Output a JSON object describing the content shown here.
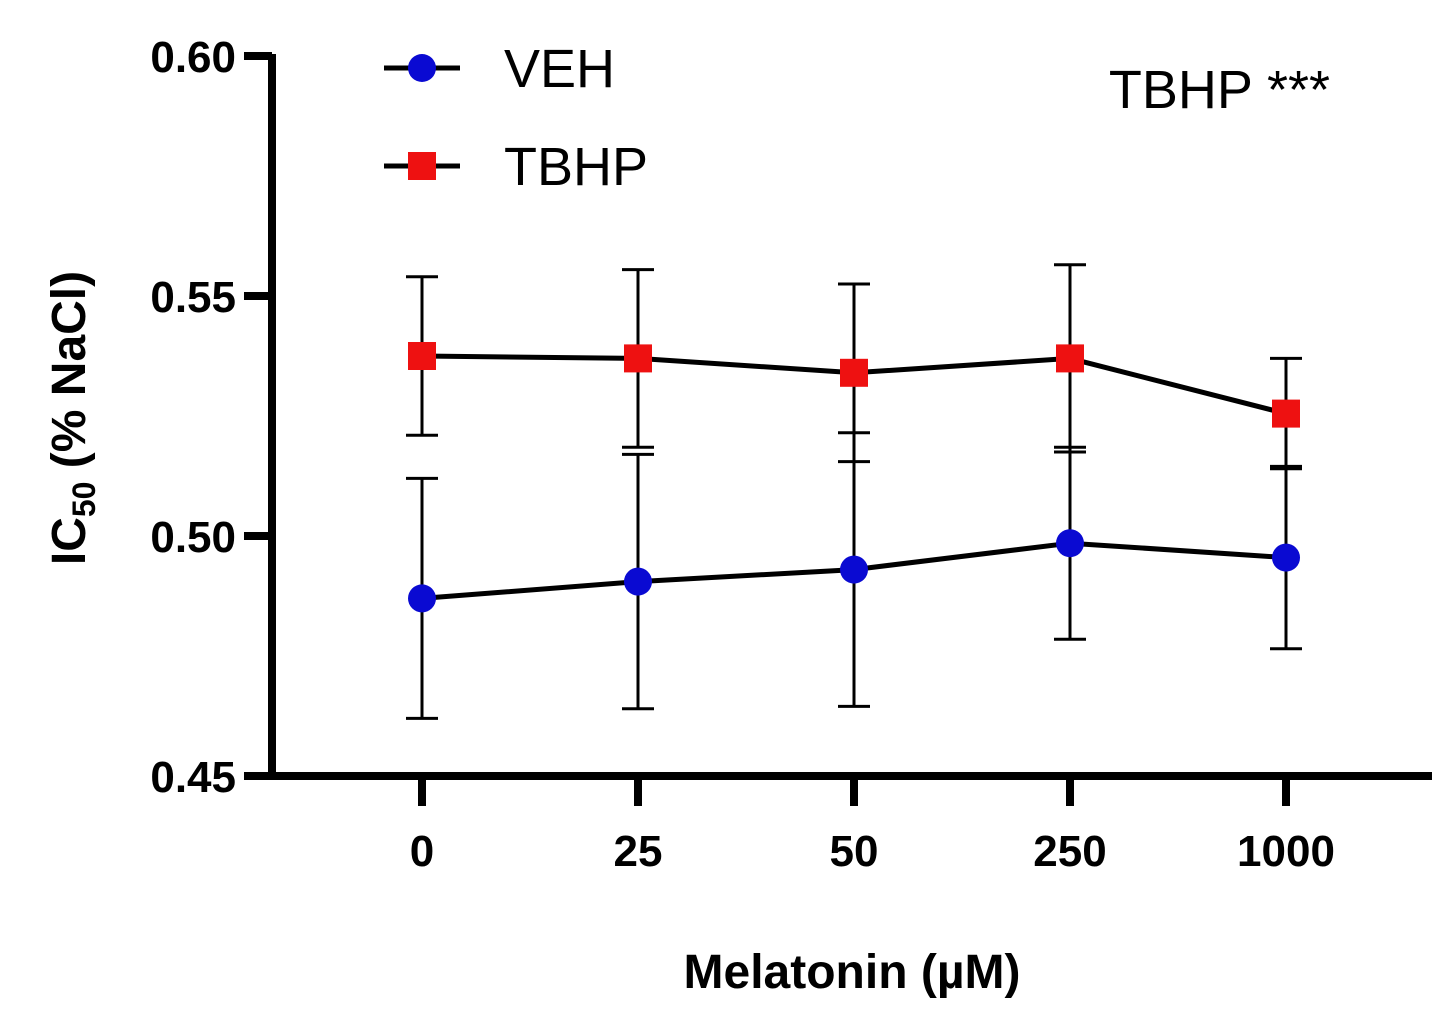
{
  "chart_data": {
    "type": "line",
    "title": "",
    "xlabel": "Melatonin (µM)",
    "ylabel": {
      "main": "IC",
      "sub": "50",
      "rest": " (% NaCl)"
    },
    "categories": [
      "0",
      "25",
      "50",
      "250",
      "1000"
    ],
    "ylim": [
      0.45,
      0.6
    ],
    "yticks": [
      0.45,
      0.5,
      0.55,
      0.6
    ],
    "ytick_labels": [
      "0.45",
      "0.50",
      "0.55",
      "0.60"
    ],
    "grid": false,
    "legend_position": "top-left",
    "series": [
      {
        "name": "VEH",
        "marker": "circle",
        "color": "#0a0ad2",
        "values": [
          0.487,
          0.4905,
          0.493,
          0.4985,
          0.4955
        ],
        "errors": [
          0.025,
          0.0265,
          0.0285,
          0.02,
          0.019
        ]
      },
      {
        "name": "TBHP",
        "marker": "square",
        "color": "#ee1111",
        "values": [
          0.5375,
          0.537,
          0.534,
          0.537,
          0.5255
        ],
        "errors": [
          0.0165,
          0.0185,
          0.0185,
          0.0195,
          0.0115
        ]
      }
    ],
    "annotations": [
      {
        "text": "TBHP ***",
        "position": "top-right"
      }
    ]
  }
}
